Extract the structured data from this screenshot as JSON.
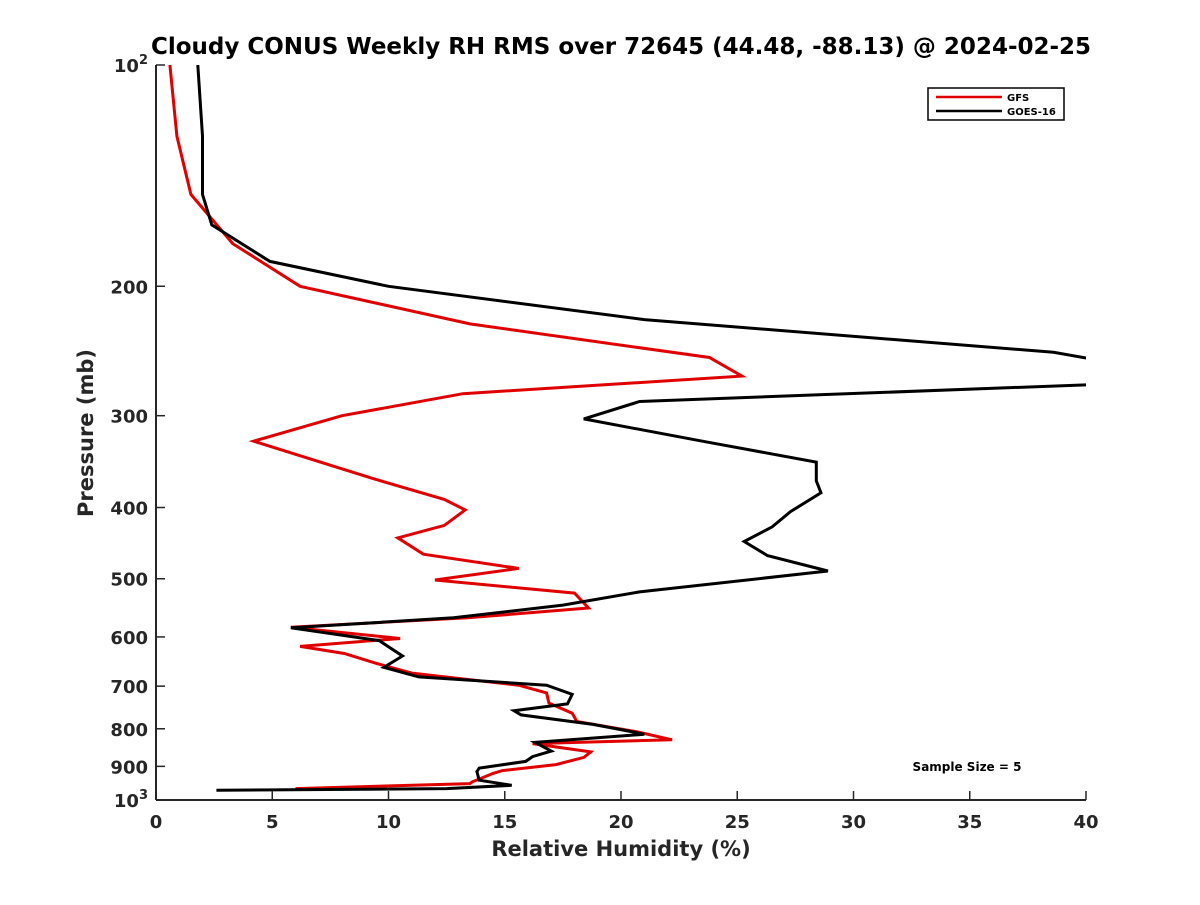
{
  "chart_data": {
    "type": "line",
    "title": "Cloudy CONUS Weekly RH RMS over 72645 (44.48, -88.13) @ 2024-02-25",
    "xlabel": "Relative Humidity (%)",
    "ylabel": "Pressure (mb)",
    "xlim": [
      0,
      40
    ],
    "ylim": [
      100,
      1000
    ],
    "y_scale": "log",
    "y_reversed": true,
    "x_ticks": [
      "0",
      "5",
      "10",
      "15",
      "20",
      "25",
      "30",
      "35",
      "40"
    ],
    "y_ticks": [
      {
        "value": 100,
        "label": "10",
        "sup": "2"
      },
      {
        "value": 200,
        "label": "200"
      },
      {
        "value": 300,
        "label": "300"
      },
      {
        "value": 400,
        "label": "400"
      },
      {
        "value": 500,
        "label": "500"
      },
      {
        "value": 600,
        "label": "600"
      },
      {
        "value": 700,
        "label": "700"
      },
      {
        "value": 800,
        "label": "800"
      },
      {
        "value": 900,
        "label": "900"
      },
      {
        "value": 1000,
        "label": "10",
        "sup": "3"
      }
    ],
    "grid": false,
    "legend_position": "top-right",
    "annotation": "Sample Size = 5",
    "series": [
      {
        "name": "GFS",
        "color": "#e00000",
        "points": [
          [
            0.6,
            100
          ],
          [
            0.9,
            125
          ],
          [
            1.5,
            150
          ],
          [
            3.3,
            175
          ],
          [
            6.2,
            200
          ],
          [
            13.5,
            225
          ],
          [
            23.8,
            250
          ],
          [
            25.2,
            265
          ],
          [
            13.2,
            280
          ],
          [
            8.0,
            300
          ],
          [
            4.2,
            325
          ],
          [
            9.3,
            365
          ],
          [
            12.4,
            390
          ],
          [
            13.3,
            403
          ],
          [
            12.4,
            423
          ],
          [
            10.4,
            440
          ],
          [
            11.5,
            463
          ],
          [
            15.6,
            484
          ],
          [
            12.0,
            502
          ],
          [
            18.0,
            523
          ],
          [
            18.6,
            548
          ],
          [
            13.4,
            565
          ],
          [
            5.8,
            582
          ],
          [
            10.5,
            603
          ],
          [
            6.2,
            618
          ],
          [
            8.1,
            632
          ],
          [
            9.5,
            652
          ],
          [
            11.0,
            672
          ],
          [
            15.6,
            698
          ],
          [
            16.8,
            715
          ],
          [
            16.9,
            738
          ],
          [
            17.9,
            762
          ],
          [
            18.1,
            782
          ],
          [
            20.7,
            808
          ],
          [
            22.2,
            828
          ],
          [
            16.2,
            838
          ],
          [
            18.7,
            860
          ],
          [
            18.4,
            875
          ],
          [
            17.2,
            895
          ],
          [
            14.9,
            912
          ],
          [
            14.5,
            920
          ],
          [
            13.6,
            945
          ],
          [
            13.5,
            950
          ],
          [
            6.0,
            965
          ]
        ]
      },
      {
        "name": "GOES-16",
        "color": "#000000",
        "points": [
          [
            1.8,
            100
          ],
          [
            2.0,
            125
          ],
          [
            2.0,
            150
          ],
          [
            2.4,
            165
          ],
          [
            4.9,
            185
          ],
          [
            10.0,
            200
          ],
          [
            21.0,
            222
          ],
          [
            38.6,
            246
          ],
          [
            40.5,
            252
          ],
          [
            40.5,
            272
          ],
          [
            20.8,
            287
          ],
          [
            18.4,
            303
          ],
          [
            23.5,
            325
          ],
          [
            28.4,
            347
          ],
          [
            28.4,
            368
          ],
          [
            28.6,
            382
          ],
          [
            27.3,
            405
          ],
          [
            26.5,
            425
          ],
          [
            25.3,
            445
          ],
          [
            26.3,
            465
          ],
          [
            28.9,
            488
          ],
          [
            20.8,
            521
          ],
          [
            17.5,
            543
          ],
          [
            12.8,
            565
          ],
          [
            5.8,
            583
          ],
          [
            9.6,
            607
          ],
          [
            10.6,
            637
          ],
          [
            9.8,
            660
          ],
          [
            11.3,
            680
          ],
          [
            16.8,
            698
          ],
          [
            17.9,
            718
          ],
          [
            17.7,
            740
          ],
          [
            15.4,
            756
          ],
          [
            15.7,
            766
          ],
          [
            18.8,
            789
          ],
          [
            20.5,
            808
          ],
          [
            21.0,
            814
          ],
          [
            16.3,
            835
          ],
          [
            17.0,
            858
          ],
          [
            16.2,
            873
          ],
          [
            15.9,
            886
          ],
          [
            13.9,
            905
          ],
          [
            13.8,
            915
          ],
          [
            13.9,
            940
          ],
          [
            15.3,
            955
          ],
          [
            12.5,
            965
          ],
          [
            2.6,
            970
          ]
        ]
      }
    ]
  }
}
